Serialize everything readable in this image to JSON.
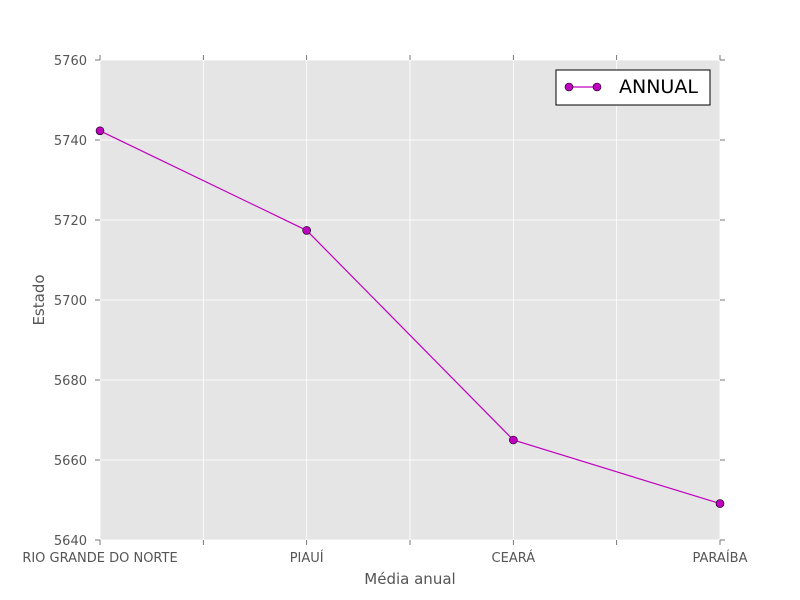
{
  "chart_data": {
    "type": "line",
    "title": "",
    "xlabel": "Média anual",
    "ylabel": "Estado",
    "categories": [
      "RIO GRANDE DO NORTE",
      "PIAUÍ",
      "CEARÁ",
      "PARAÍBA"
    ],
    "series": [
      {
        "name": "ANNUAL",
        "values": [
          5742.3,
          5717.4,
          5665.0,
          5649.1
        ],
        "color": "#c000c0",
        "marker": "circle"
      }
    ],
    "ylim": [
      5640,
      5760
    ],
    "yticks": [
      5640,
      5660,
      5680,
      5700,
      5720,
      5740,
      5760
    ],
    "grid": true,
    "legend_position": "top-right",
    "plot_background": "#e5e5e5",
    "grid_color": "#ffffff"
  }
}
